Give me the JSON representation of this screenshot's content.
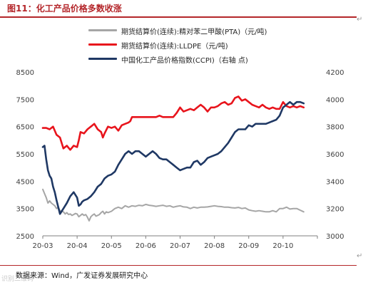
{
  "header": {
    "title": "图11：化工产品价格多数收涨",
    "pilcrow": "↵"
  },
  "footer": {
    "source": "数据来源：Wind，广发证券发展研究中心",
    "watermark": "识别二维码"
  },
  "colors": {
    "pta": "#a6a6a6",
    "lldpe": "#e8141c",
    "ccpi": "#1f3864",
    "accent": "#b4262a"
  },
  "chart_data": {
    "type": "line",
    "title": "",
    "x_ticks": [
      "20-03",
      "20-04",
      "20-05",
      "20-06",
      "20-07",
      "20-08",
      "20-09",
      "20-10"
    ],
    "left_axis": {
      "min": 2500,
      "max": 8500,
      "ticks": [
        2500,
        3500,
        4500,
        5500,
        6500,
        7500,
        8500
      ]
    },
    "right_axis": {
      "min": 3000,
      "max": 4200,
      "ticks": [
        3000,
        3200,
        3400,
        3600,
        3800,
        4000,
        4200
      ]
    },
    "legend_position": "top",
    "series": [
      {
        "key": "pta",
        "name": "期货结算价(连续):精对苯二甲酸(PTA)（元/吨)",
        "axis": "left",
        "x": [
          0,
          0.05,
          0.1,
          0.15,
          0.2,
          0.25,
          0.3,
          0.35,
          0.4,
          0.45,
          0.5,
          0.55,
          0.6,
          0.65,
          0.7,
          0.75,
          0.8,
          0.85,
          0.9,
          0.95,
          1.0,
          1.05,
          1.1,
          1.15,
          1.2,
          1.25,
          1.3,
          1.35,
          1.4,
          1.45,
          1.5,
          1.55,
          1.6,
          1.65,
          1.7,
          1.75,
          1.8,
          1.85,
          1.9,
          2.0,
          2.1,
          2.2,
          2.3,
          2.4,
          2.5,
          2.6,
          2.7,
          2.8,
          2.9,
          3.0,
          3.1,
          3.2,
          3.3,
          3.4,
          3.5,
          3.6,
          3.7,
          3.8,
          3.9,
          4.0,
          4.1,
          4.2,
          4.3,
          4.4,
          4.5,
          4.6,
          4.7,
          4.8,
          4.9,
          5.0,
          5.1,
          5.2,
          5.3,
          5.4,
          5.5,
          5.6,
          5.7,
          5.8,
          5.9,
          6.0,
          6.1,
          6.2,
          6.3,
          6.4,
          6.5,
          6.6,
          6.7,
          6.8,
          6.9,
          7.0,
          7.1,
          7.2,
          7.3,
          7.4,
          7.5,
          7.6
        ],
        "values": [
          4200,
          4050,
          3900,
          3700,
          3780,
          3700,
          3650,
          3600,
          3500,
          3550,
          3420,
          3400,
          3380,
          3300,
          3350,
          3280,
          3300,
          3250,
          3280,
          3320,
          3300,
          3200,
          3250,
          3300,
          3250,
          3280,
          3180,
          3050,
          3200,
          3260,
          3300,
          3220,
          3250,
          3280,
          3350,
          3400,
          3300,
          3380,
          3350,
          3400,
          3500,
          3550,
          3500,
          3600,
          3550,
          3600,
          3580,
          3620,
          3600,
          3650,
          3620,
          3600,
          3580,
          3600,
          3620,
          3580,
          3600,
          3550,
          3580,
          3600,
          3560,
          3550,
          3500,
          3550,
          3520,
          3550,
          3550,
          3560,
          3580,
          3600,
          3580,
          3570,
          3550,
          3550,
          3530,
          3520,
          3540,
          3500,
          3520,
          3450,
          3420,
          3400,
          3420,
          3400,
          3380,
          3380,
          3420,
          3380,
          3500,
          3500,
          3550,
          3480,
          3500,
          3500,
          3440,
          3380
        ]
      },
      {
        "key": "lldpe",
        "name": "期货结算价(连续):LLDPE（元/吨)",
        "axis": "left",
        "x": [
          0,
          0.1,
          0.2,
          0.3,
          0.4,
          0.5,
          0.55,
          0.6,
          0.7,
          0.8,
          0.9,
          1.0,
          1.05,
          1.1,
          1.2,
          1.3,
          1.4,
          1.5,
          1.6,
          1.7,
          1.75,
          1.8,
          1.9,
          2.0,
          2.1,
          2.2,
          2.3,
          2.4,
          2.5,
          2.55,
          2.6,
          2.7,
          2.8,
          2.9,
          3.0,
          3.1,
          3.2,
          3.3,
          3.4,
          3.5,
          3.6,
          3.7,
          3.8,
          3.9,
          4.0,
          4.1,
          4.2,
          4.3,
          4.4,
          4.5,
          4.6,
          4.7,
          4.8,
          4.9,
          5.0,
          5.1,
          5.2,
          5.3,
          5.4,
          5.5,
          5.6,
          5.7,
          5.8,
          5.9,
          6.0,
          6.1,
          6.2,
          6.3,
          6.4,
          6.5,
          6.6,
          6.7,
          6.8,
          6.9,
          7.0,
          7.1,
          7.2,
          7.3,
          7.4,
          7.5,
          7.6
        ],
        "values": [
          6450,
          6450,
          6400,
          6500,
          6200,
          6100,
          5900,
          5700,
          5800,
          5650,
          5800,
          5750,
          6000,
          6300,
          6250,
          6400,
          6500,
          6600,
          6400,
          6300,
          6100,
          6250,
          6500,
          6450,
          6500,
          6350,
          6550,
          6600,
          6650,
          6700,
          6850,
          6850,
          6850,
          6850,
          6850,
          6850,
          6850,
          6850,
          6900,
          6850,
          6850,
          6850,
          6850,
          7000,
          7200,
          7050,
          7100,
          7150,
          7100,
          7200,
          7300,
          7200,
          7050,
          7200,
          7200,
          7250,
          7350,
          7400,
          7300,
          7350,
          7550,
          7600,
          7450,
          7500,
          7400,
          7300,
          7250,
          7200,
          7300,
          7200,
          7150,
          7200,
          7150,
          7150,
          7400,
          7250,
          7200,
          7250,
          7200,
          7250,
          7200
        ]
      },
      {
        "key": "ccpi",
        "name": "中国化工产品价格指数(CCPI)（右轴 点)",
        "axis": "right",
        "x": [
          0,
          0.05,
          0.1,
          0.15,
          0.2,
          0.25,
          0.3,
          0.35,
          0.4,
          0.5,
          0.6,
          0.7,
          0.8,
          0.9,
          1.0,
          1.05,
          1.1,
          1.15,
          1.2,
          1.3,
          1.4,
          1.5,
          1.6,
          1.7,
          1.8,
          1.9,
          2.0,
          2.1,
          2.2,
          2.3,
          2.4,
          2.5,
          2.6,
          2.7,
          2.8,
          2.9,
          3.0,
          3.1,
          3.2,
          3.3,
          3.4,
          3.5,
          3.6,
          3.7,
          3.8,
          3.9,
          4.0,
          4.1,
          4.2,
          4.3,
          4.4,
          4.5,
          4.6,
          4.7,
          4.8,
          4.9,
          5.0,
          5.1,
          5.2,
          5.3,
          5.4,
          5.5,
          5.6,
          5.7,
          5.8,
          5.9,
          6.0,
          6.1,
          6.2,
          6.3,
          6.4,
          6.5,
          6.6,
          6.7,
          6.8,
          6.9,
          7.0,
          7.1,
          7.2,
          7.3,
          7.4,
          7.5,
          7.6
        ],
        "values": [
          3650,
          3660,
          3560,
          3480,
          3440,
          3420,
          3360,
          3320,
          3260,
          3160,
          3200,
          3240,
          3290,
          3320,
          3280,
          3220,
          3230,
          3250,
          3260,
          3270,
          3290,
          3320,
          3360,
          3380,
          3420,
          3440,
          3450,
          3470,
          3520,
          3560,
          3600,
          3620,
          3600,
          3620,
          3620,
          3600,
          3580,
          3600,
          3620,
          3600,
          3570,
          3560,
          3560,
          3540,
          3520,
          3500,
          3480,
          3490,
          3500,
          3500,
          3540,
          3550,
          3520,
          3540,
          3570,
          3580,
          3590,
          3600,
          3620,
          3650,
          3680,
          3720,
          3760,
          3780,
          3780,
          3780,
          3810,
          3800,
          3820,
          3820,
          3820,
          3820,
          3830,
          3840,
          3850,
          3880,
          3940,
          3960,
          3980,
          3960,
          3980,
          3980,
          3970
        ]
      }
    ]
  }
}
